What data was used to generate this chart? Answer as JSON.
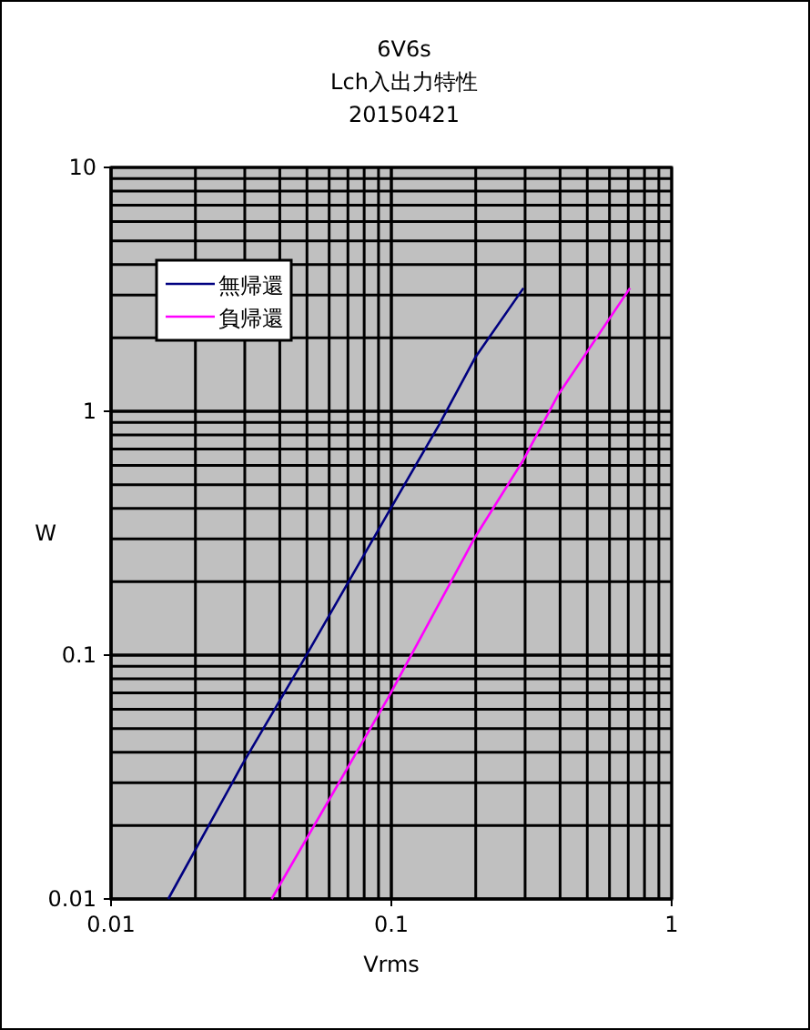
{
  "chart_data": {
    "type": "line",
    "title": "6V6s\nLch入出力特性\n20150421",
    "xlabel": "Vrms",
    "ylabel": "W",
    "log": "xy",
    "xlim": [
      0.01,
      1
    ],
    "ylim": [
      0.01,
      10
    ],
    "xticks": [
      0.01,
      0.1,
      1
    ],
    "yticks": [
      0.01,
      0.1,
      1,
      10
    ],
    "grid": true,
    "legend": "top left",
    "marker": "none",
    "series": [
      {
        "name": "無帰還",
        "color": "#000080",
        "x": [
          0.016,
          0.0294,
          0.049,
          0.0989,
          0.148,
          0.199,
          0.296
        ],
        "values": [
          0.01,
          0.0356,
          0.097,
          0.395,
          0.88,
          1.66,
          3.2
        ]
      },
      {
        "name": "負帰還",
        "color": "#ff00ff",
        "x": [
          0.0374,
          0.0975,
          0.199,
          0.296,
          0.394,
          0.71
        ],
        "values": [
          0.01,
          0.067,
          0.305,
          0.632,
          1.17,
          3.2
        ]
      }
    ]
  }
}
